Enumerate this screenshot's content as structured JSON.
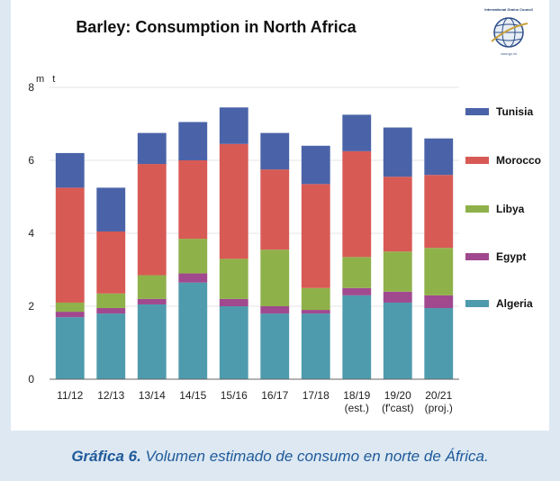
{
  "chart_data": {
    "type": "bar",
    "stacked": true,
    "title": "Barley: Consumption in North Africa",
    "ylabel": "m t",
    "ylim": [
      0,
      8
    ],
    "yticks": [
      0,
      2,
      4,
      6,
      8
    ],
    "categories": [
      [
        "11/12"
      ],
      [
        "12/13"
      ],
      [
        "13/14"
      ],
      [
        "14/15"
      ],
      [
        "15/16"
      ],
      [
        "16/17"
      ],
      [
        "17/18"
      ],
      [
        "18/19",
        "(est.)"
      ],
      [
        "19/20",
        "(f'cast)"
      ],
      [
        "20/21",
        "(proj.)"
      ]
    ],
    "series": [
      {
        "name": "Algeria",
        "color": "#4f9bae",
        "values": [
          1.7,
          1.8,
          2.05,
          2.65,
          2.0,
          1.8,
          1.8,
          2.3,
          2.1,
          1.95
        ]
      },
      {
        "name": "Egypt",
        "color": "#a0498f",
        "values": [
          0.15,
          0.15,
          0.15,
          0.25,
          0.2,
          0.2,
          0.1,
          0.2,
          0.3,
          0.35
        ]
      },
      {
        "name": "Libya",
        "color": "#8fb14a",
        "values": [
          0.25,
          0.4,
          0.65,
          0.95,
          1.1,
          1.55,
          0.6,
          0.85,
          1.1,
          1.3
        ]
      },
      {
        "name": "Morocco",
        "color": "#d85a55",
        "values": [
          3.15,
          1.7,
          3.05,
          2.15,
          3.15,
          2.2,
          2.85,
          2.9,
          2.05,
          2.0
        ]
      },
      {
        "name": "Tunisia",
        "color": "#4a63a8",
        "values": [
          0.95,
          1.2,
          0.85,
          1.05,
          1.0,
          1.0,
          1.05,
          1.0,
          1.35,
          1.0
        ]
      }
    ],
    "legend_order": [
      "Tunisia",
      "Morocco",
      "Libya",
      "Egypt",
      "Algeria"
    ],
    "legend_position": "right"
  },
  "logo": {
    "top_text": "International Grains Council",
    "bottom_text": "www.igc.int"
  },
  "caption": {
    "label": "Gráfica 6.",
    "text": " Volumen estimado de consumo en norte de África."
  }
}
